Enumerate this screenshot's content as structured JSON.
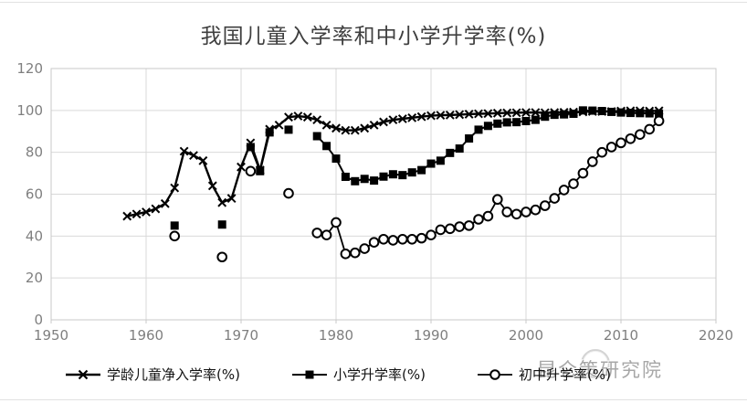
{
  "title": "我国儿童入学率和中小学升学率(%)",
  "watermark": "昆仑策研究院",
  "legend": {
    "item1": "学龄儿童净入学率(%)",
    "item2": "小学升学率(%)",
    "item3": "初中升学率(%)"
  },
  "chart_data": {
    "type": "line",
    "title": "我国儿童入学率和中小学升学率(%)",
    "xlabel": "",
    "ylabel": "",
    "xlim": [
      1950,
      2020
    ],
    "ylim": [
      0,
      120
    ],
    "x_ticks": [
      1950,
      1960,
      1970,
      1980,
      1990,
      2000,
      2010,
      2020
    ],
    "y_ticks": [
      0,
      20,
      40,
      60,
      80,
      100,
      120
    ],
    "grid": true,
    "legend_position": "bottom",
    "series": [
      {
        "name": "学龄儿童净入学率(%)",
        "marker": "x-cross",
        "line_width": 2.4,
        "points": [
          [
            1958,
            49.5
          ],
          [
            1959,
            50.5
          ],
          [
            1960,
            51.5
          ],
          [
            1961,
            53
          ],
          [
            1962,
            55.5
          ],
          [
            1963,
            63
          ],
          [
            1964,
            80.5
          ],
          [
            1965,
            78.5
          ],
          [
            1966,
            76
          ],
          [
            1967,
            64
          ],
          [
            1968,
            56
          ],
          [
            1969,
            58
          ],
          [
            1970,
            73
          ],
          [
            1971,
            84.5
          ],
          [
            1972,
            71.5
          ],
          [
            1973,
            91
          ],
          [
            1974,
            93
          ],
          [
            1975,
            96.8
          ],
          [
            1976,
            97.3
          ],
          [
            1977,
            96.8
          ],
          [
            1978,
            95.5
          ],
          [
            1979,
            93
          ],
          [
            1980,
            91.5
          ],
          [
            1981,
            90.5
          ],
          [
            1982,
            90.5
          ],
          [
            1983,
            91.5
          ],
          [
            1984,
            93
          ],
          [
            1985,
            94.5
          ],
          [
            1986,
            95.5
          ],
          [
            1987,
            96
          ],
          [
            1988,
            96.5
          ],
          [
            1989,
            97
          ],
          [
            1990,
            97.5
          ],
          [
            1991,
            97.7
          ],
          [
            1992,
            97.8
          ],
          [
            1993,
            98
          ],
          [
            1994,
            98.2
          ],
          [
            1995,
            98.4
          ],
          [
            1996,
            98.5
          ],
          [
            1997,
            98.7
          ],
          [
            1998,
            98.8
          ],
          [
            1999,
            98.9
          ],
          [
            2000,
            99
          ],
          [
            2001,
            99
          ],
          [
            2002,
            98.9
          ],
          [
            2003,
            99
          ],
          [
            2004,
            99.1
          ],
          [
            2005,
            99.2
          ],
          [
            2006,
            99.3
          ],
          [
            2007,
            99.5
          ],
          [
            2008,
            99.5
          ],
          [
            2009,
            99.5
          ],
          [
            2010,
            99.7
          ],
          [
            2011,
            99.8
          ],
          [
            2012,
            99.8
          ],
          [
            2013,
            99.7
          ],
          [
            2014,
            99.8
          ]
        ]
      },
      {
        "name": "小学升学率(%)",
        "marker": "filled-square",
        "line_width": 2,
        "points": [
          [
            1963,
            45
          ],
          [
            1968,
            45.5
          ],
          [
            1971,
            82.5
          ],
          [
            1972,
            71
          ],
          [
            1973,
            89.5
          ],
          [
            1975,
            90.8
          ],
          [
            1978,
            87.7
          ],
          [
            1979,
            83
          ],
          [
            1980,
            77
          ],
          [
            1981,
            68.3
          ],
          [
            1982,
            66.2
          ],
          [
            1983,
            67.3
          ],
          [
            1984,
            66.5
          ],
          [
            1985,
            68.4
          ],
          [
            1986,
            69.5
          ],
          [
            1987,
            69.1
          ],
          [
            1988,
            70.4
          ],
          [
            1989,
            71.5
          ],
          [
            1990,
            74.6
          ],
          [
            1991,
            76
          ],
          [
            1992,
            79.7
          ],
          [
            1993,
            81.8
          ],
          [
            1994,
            86.6
          ],
          [
            1995,
            90.8
          ],
          [
            1996,
            92.6
          ],
          [
            1997,
            93.7
          ],
          [
            1998,
            94.3
          ],
          [
            1999,
            94.4
          ],
          [
            2000,
            94.9
          ],
          [
            2001,
            95.5
          ],
          [
            2002,
            97
          ],
          [
            2003,
            97.9
          ],
          [
            2004,
            98.1
          ],
          [
            2005,
            98.4
          ],
          [
            2006,
            100
          ],
          [
            2007,
            99.9
          ],
          [
            2008,
            99.7
          ],
          [
            2009,
            99.3
          ],
          [
            2010,
            99
          ],
          [
            2011,
            98.8
          ],
          [
            2012,
            98.7
          ],
          [
            2013,
            98.6
          ],
          [
            2014,
            98.5
          ]
        ]
      },
      {
        "name": "初中升学率(%)",
        "marker": "open-circle",
        "line_width": 1.8,
        "points": [
          [
            1963,
            40
          ],
          [
            1968,
            30
          ],
          [
            1971,
            71
          ],
          [
            1975,
            60.4
          ],
          [
            1978,
            41.5
          ],
          [
            1979,
            40.5
          ],
          [
            1980,
            46.5
          ],
          [
            1981,
            31.5
          ],
          [
            1982,
            32
          ],
          [
            1983,
            34
          ],
          [
            1984,
            37
          ],
          [
            1985,
            38.5
          ],
          [
            1986,
            38
          ],
          [
            1987,
            38.5
          ],
          [
            1988,
            38.5
          ],
          [
            1989,
            39
          ],
          [
            1990,
            40.5
          ],
          [
            1991,
            43
          ],
          [
            1992,
            43.5
          ],
          [
            1993,
            44.5
          ],
          [
            1994,
            45
          ],
          [
            1995,
            48
          ],
          [
            1996,
            49.5
          ],
          [
            1997,
            57.5
          ],
          [
            1998,
            51.5
          ],
          [
            1999,
            50.5
          ],
          [
            2000,
            51.5
          ],
          [
            2001,
            52.5
          ],
          [
            2002,
            54.5
          ],
          [
            2003,
            58
          ],
          [
            2004,
            62
          ],
          [
            2005,
            65
          ],
          [
            2006,
            70
          ],
          [
            2007,
            75.5
          ],
          [
            2008,
            80
          ],
          [
            2009,
            82.5
          ],
          [
            2010,
            84.5
          ],
          [
            2011,
            86.5
          ],
          [
            2012,
            88.5
          ],
          [
            2013,
            91
          ],
          [
            2014,
            95
          ]
        ]
      }
    ]
  },
  "colors": {
    "series": "#000000",
    "grid": "#d9d9d9",
    "plot_border": "#c9c9c9",
    "axis_text": "#7f7f7f",
    "title_text": "#3f3f3f",
    "watermark_text": "#a3a3a3"
  }
}
